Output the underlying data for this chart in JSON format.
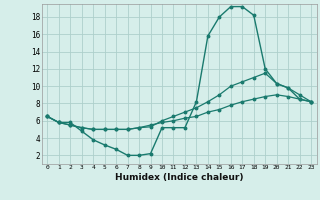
{
  "xlabel": "Humidex (Indice chaleur)",
  "bg_color": "#d6eeea",
  "grid_color": "#aed0cb",
  "line_color": "#1a7a6e",
  "xlim": [
    -0.5,
    23.5
  ],
  "ylim": [
    1,
    19.5
  ],
  "xticks": [
    0,
    1,
    2,
    3,
    4,
    5,
    6,
    7,
    8,
    9,
    10,
    11,
    12,
    13,
    14,
    15,
    16,
    17,
    18,
    19,
    20,
    21,
    22,
    23
  ],
  "yticks": [
    2,
    4,
    6,
    8,
    10,
    12,
    14,
    16,
    18
  ],
  "line1_x": [
    0,
    1,
    2,
    3,
    4,
    5,
    6,
    7,
    8,
    9,
    10,
    11,
    12,
    13,
    14,
    15,
    16,
    17,
    18,
    19,
    20,
    21,
    22,
    23
  ],
  "line1_y": [
    6.5,
    5.8,
    5.8,
    4.8,
    3.8,
    3.2,
    2.7,
    2.0,
    2.0,
    2.2,
    5.2,
    5.2,
    5.2,
    8.2,
    15.8,
    18.0,
    19.2,
    19.2,
    18.2,
    12.0,
    10.3,
    9.8,
    8.5,
    8.2
  ],
  "line2_x": [
    0,
    1,
    2,
    3,
    4,
    5,
    6,
    7,
    8,
    9,
    10,
    11,
    12,
    13,
    14,
    15,
    16,
    17,
    18,
    19,
    20,
    21,
    22,
    23
  ],
  "line2_y": [
    6.5,
    5.8,
    5.5,
    5.2,
    5.0,
    5.0,
    5.0,
    5.0,
    5.2,
    5.3,
    6.0,
    6.5,
    7.0,
    7.5,
    8.2,
    9.0,
    10.0,
    10.5,
    11.0,
    11.5,
    10.3,
    9.8,
    9.0,
    8.2
  ],
  "line3_x": [
    0,
    1,
    2,
    3,
    4,
    5,
    6,
    7,
    8,
    9,
    10,
    11,
    12,
    13,
    14,
    15,
    16,
    17,
    18,
    19,
    20,
    21,
    22,
    23
  ],
  "line3_y": [
    6.5,
    5.8,
    5.5,
    5.2,
    5.0,
    5.0,
    5.0,
    5.0,
    5.2,
    5.5,
    5.8,
    6.0,
    6.3,
    6.5,
    7.0,
    7.3,
    7.8,
    8.2,
    8.5,
    8.8,
    9.0,
    8.8,
    8.5,
    8.2
  ]
}
